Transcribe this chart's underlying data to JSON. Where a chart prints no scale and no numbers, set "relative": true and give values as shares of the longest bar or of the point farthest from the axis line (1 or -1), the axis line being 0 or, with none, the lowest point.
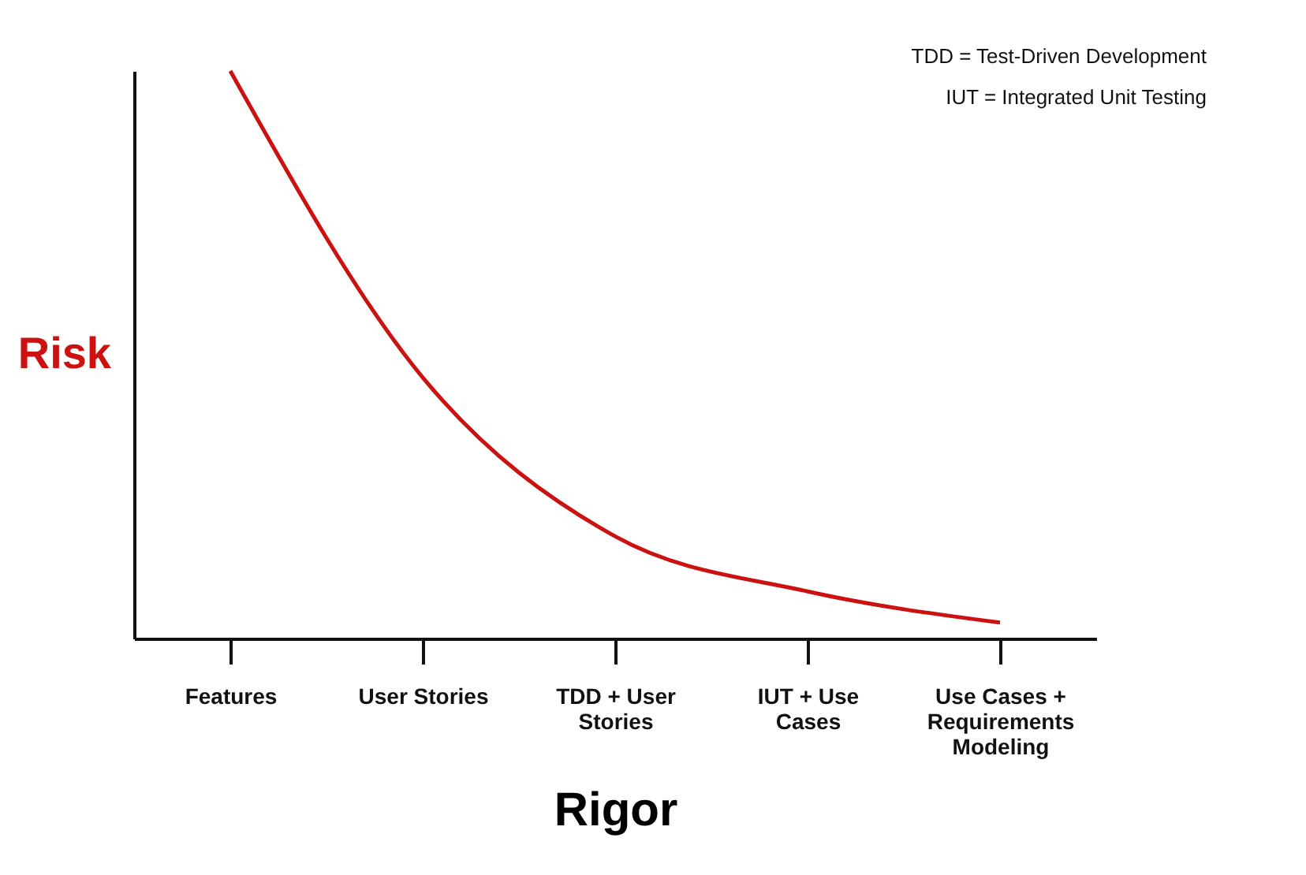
{
  "chart_data": {
    "type": "line",
    "relative": true,
    "xlabel": "Rigor",
    "ylabel": "Risk",
    "categories": [
      "Features",
      "User Stories",
      "TDD + User Stories",
      "IUT + Use Cases",
      "Use Cases + Requirements Modeling"
    ],
    "series": [
      {
        "color": "#cc1111",
        "values": [
          1,
          0.46,
          0.18,
          0.083,
          0.028
        ]
      }
    ],
    "annotations": [
      "TDD = Test-Driven Development",
      "IUT = Integrated Unit Testing"
    ]
  }
}
